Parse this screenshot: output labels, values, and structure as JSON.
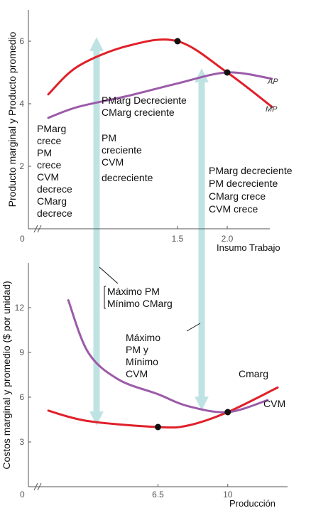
{
  "chart_data": [
    {
      "type": "line",
      "ylabel": "Producto marginal y Producto promedio",
      "xlabel": "Insumo Trabajo",
      "origin_label": "0",
      "xlim": [
        0,
        2.5
      ],
      "ylim": [
        0,
        7
      ],
      "y_ticks": [
        "2",
        "4",
        "6"
      ],
      "x_ticks": [
        "1.5",
        "2.0"
      ],
      "series": [
        {
          "name": "AP",
          "color": "#9b5ba8",
          "x": [
            0.2,
            0.5,
            1.0,
            1.5,
            2.0,
            2.45
          ],
          "y": [
            3.55,
            3.9,
            4.25,
            4.65,
            5.0,
            4.8
          ]
        },
        {
          "name": "MP",
          "color": "#e0202a",
          "x": [
            0.2,
            0.5,
            1.0,
            1.5,
            2.0,
            2.45
          ],
          "y": [
            4.3,
            5.2,
            5.85,
            6.0,
            5.0,
            3.9
          ]
        }
      ],
      "points": [
        {
          "x": 1.5,
          "y": 6.0
        },
        {
          "x": 2.0,
          "y": 5.0
        }
      ],
      "annotations": [
        {
          "lines": [
            "PMarg",
            "crece",
            "PM",
            "crece",
            "CVM",
            "decrece",
            "CMarg",
            "decrece"
          ]
        },
        {
          "lines": [
            "PMarg Decreciente",
            "CMarg creciente"
          ]
        },
        {
          "lines": [
            "PM",
            "creciente",
            "CVM",
            "decreciente"
          ]
        },
        {
          "lines": [
            "PMarg decreciente",
            "PM decreciente",
            "CMarg crece",
            "CVM crece"
          ]
        }
      ]
    },
    {
      "type": "line",
      "ylabel": "Costos marginal y promedio ($ por unidad)",
      "xlabel": "Producción",
      "origin_label": "0",
      "xlim": [
        0,
        13
      ],
      "ylim": [
        0,
        15
      ],
      "y_ticks": [
        "3",
        "6",
        "9",
        "12"
      ],
      "x_ticks": [
        "6.5",
        "10"
      ],
      "series": [
        {
          "name": "Cmarg",
          "color": "#e0202a",
          "x": [
            1,
            3,
            6.5,
            8,
            10,
            12.5
          ],
          "y": [
            5.1,
            4.4,
            4.0,
            4.1,
            5.0,
            6.65
          ]
        },
        {
          "name": "CVM",
          "color": "#9b5ba8",
          "x": [
            2,
            3,
            4.5,
            6.5,
            8,
            10,
            12
          ],
          "y": [
            12.5,
            9.0,
            7.2,
            6.2,
            5.4,
            5.0,
            5.8
          ]
        }
      ],
      "points": [
        {
          "x": 6.5,
          "y": 4.0
        },
        {
          "x": 10,
          "y": 5.0
        }
      ],
      "annotations": [
        {
          "lines": [
            "Máximo PM",
            "Mínimo CMarg"
          ]
        },
        {
          "lines": [
            "Máximo",
            "PM y",
            "Mínimo",
            "CVM"
          ]
        }
      ]
    }
  ],
  "curve_labels": {
    "ap": "AP",
    "mp": "MP",
    "cmarg": "Cmarg",
    "cvm": "CVM"
  },
  "colors": {
    "red": "#e0202a",
    "purple": "#9b5ba8",
    "arrow": "#bfe3e3",
    "axis": "#555555"
  }
}
